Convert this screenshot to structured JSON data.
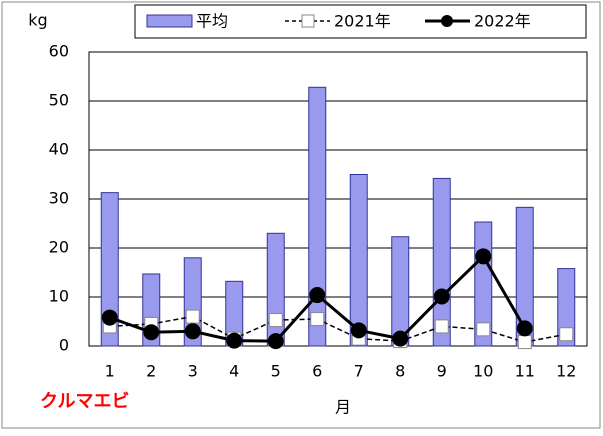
{
  "chart_data": {
    "type": "bar-line",
    "ylabel": "kg",
    "xlabel": "月",
    "annotation": "クルマエビ",
    "categories": [
      "1",
      "2",
      "3",
      "4",
      "5",
      "6",
      "7",
      "8",
      "9",
      "10",
      "11",
      "12"
    ],
    "ylim": [
      0,
      60
    ],
    "yticks": [
      0,
      10,
      20,
      30,
      40,
      50,
      60
    ],
    "grid": true,
    "series": [
      {
        "name": "平均",
        "kind": "bar",
        "color": "#9999ee",
        "values": [
          31.3,
          14.7,
          18,
          13.2,
          23,
          52.8,
          35,
          22.3,
          34.2,
          25.3,
          28.3,
          15.8
        ]
      },
      {
        "name": "2021年",
        "kind": "dashed-square",
        "color": "#000000",
        "values": [
          4,
          4.5,
          6,
          1.5,
          5.3,
          5.5,
          1.5,
          1,
          4,
          3.4,
          0.8,
          2.4
        ]
      },
      {
        "name": "2022年",
        "kind": "solid-circle",
        "color": "#000000",
        "values": [
          5.8,
          2.8,
          3,
          1.1,
          1,
          10.4,
          3.2,
          1.5,
          10.1,
          18.3,
          3.6,
          null
        ]
      }
    ]
  }
}
